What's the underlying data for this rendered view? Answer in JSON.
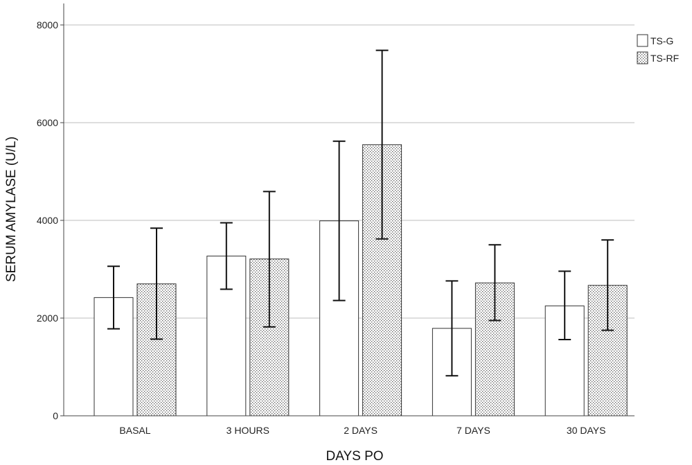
{
  "chart_data": {
    "type": "bar",
    "title": "",
    "xlabel": "DAYS PO",
    "ylabel": "SERUM AMYLASE (U/L)",
    "ylim": [
      0,
      8000
    ],
    "yticks": [
      0,
      2000,
      4000,
      6000,
      8000
    ],
    "grid": true,
    "legend_position": "top-right",
    "categories": [
      "BASAL",
      "3 HOURS",
      "2 DAYS",
      "7 DAYS",
      "30 DAYS"
    ],
    "series": [
      {
        "name": "TS-G",
        "fill": "white",
        "values": [
          2420,
          3270,
          3990,
          1790,
          2250
        ],
        "error_low": [
          1780,
          2590,
          2360,
          820,
          1560
        ],
        "error_high": [
          3060,
          3950,
          5620,
          2760,
          2960
        ]
      },
      {
        "name": "TS-RF",
        "fill": "dotted",
        "values": [
          2700,
          3210,
          5550,
          2720,
          2670
        ],
        "error_low": [
          1570,
          1820,
          3620,
          1950,
          1750
        ],
        "error_high": [
          3840,
          4590,
          7480,
          3500,
          3600
        ]
      }
    ]
  }
}
